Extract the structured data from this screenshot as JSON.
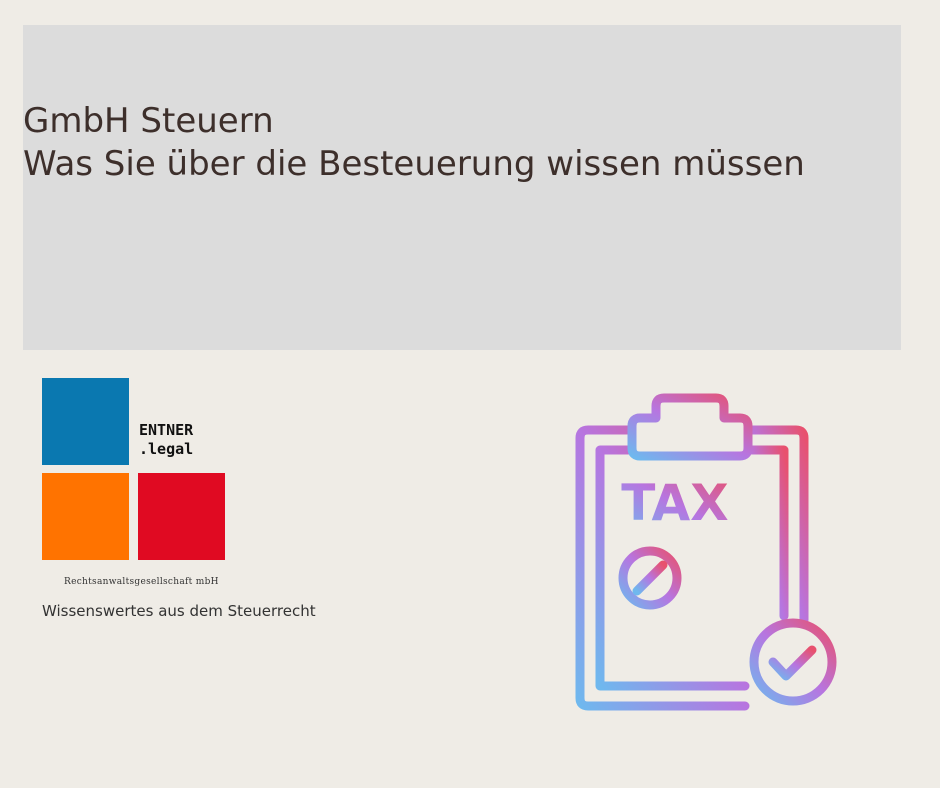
{
  "banner": {
    "line1": "GmbH Steuern",
    "line2": "Was Sie über die Besteuerung wissen müssen"
  },
  "logo": {
    "brand_line1": "ENTNER",
    "brand_line2": ".legal",
    "firm": "Rechtsanwaltsgesellschaft mbH",
    "colors": {
      "blue": "#0a78b0",
      "orange": "#ff7300",
      "red": "#e00a22"
    }
  },
  "subtitle": "Wissenswertes aus dem Steuerrecht",
  "icon": {
    "name": "tax-clipboard-icon",
    "label": "TAX",
    "gradient": [
      "#e8516e",
      "#b775e0",
      "#6fb8ee"
    ]
  }
}
